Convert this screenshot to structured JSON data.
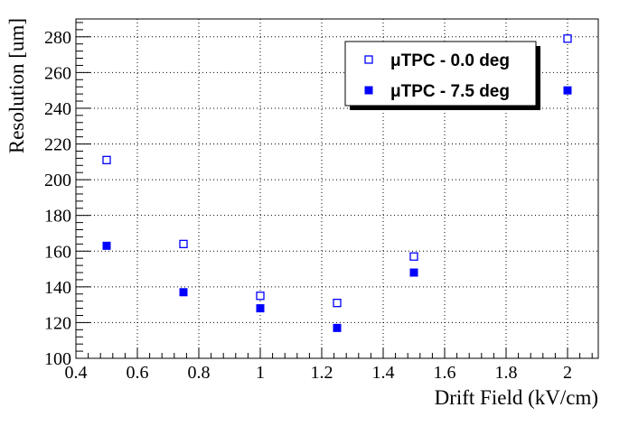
{
  "chart_data": {
    "type": "scatter",
    "xlabel": "Drift Field (kV/cm)",
    "ylabel": "Resolution [um]",
    "xlim": [
      0.4,
      2.1
    ],
    "ylim": [
      100,
      290
    ],
    "grid": true,
    "legend_position": "top-right",
    "x_ticks": [
      "0.4",
      "0.6",
      "0.8",
      "1",
      "1.2",
      "1.4",
      "1.6",
      "1.8",
      "2"
    ],
    "y_ticks": [
      "100",
      "120",
      "140",
      "160",
      "180",
      "200",
      "220",
      "240",
      "260",
      "280"
    ],
    "series": [
      {
        "name": "μTPC - 0.0 deg",
        "marker": "open-square",
        "color": "#0000ff",
        "x": [
          0.5,
          0.75,
          1.0,
          1.25,
          1.5,
          2.0
        ],
        "y": [
          211,
          164,
          135,
          131,
          157,
          279
        ]
      },
      {
        "name": "μTPC - 7.5 deg",
        "marker": "filled-square",
        "color": "#0000ff",
        "x": [
          0.5,
          0.75,
          1.0,
          1.25,
          1.5,
          2.0
        ],
        "y": [
          163,
          137,
          128,
          117,
          148,
          250
        ]
      }
    ]
  }
}
